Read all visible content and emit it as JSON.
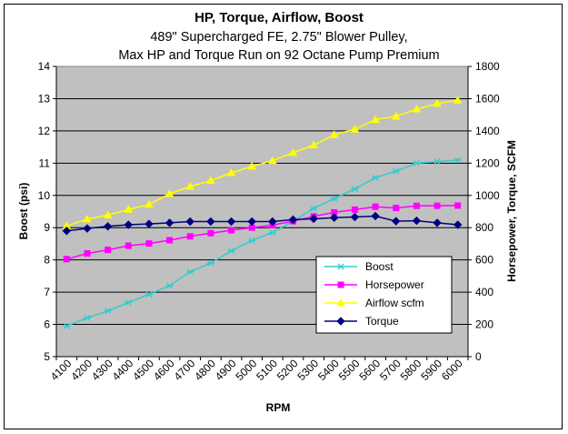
{
  "chart_data": {
    "type": "line",
    "title": "HP, Torque, Airflow, Boost",
    "subtitle_lines": [
      "489\" Supercharged FE, 2.75\" Blower Pulley,",
      "Max HP and Torque Run on 92 Octane Pump Premium"
    ],
    "xlabel": "RPM",
    "ylabel_left": "Boost (psi)",
    "ylabel_right": "Horsepower, Torque, SCFM",
    "x": [
      4100,
      4200,
      4300,
      4400,
      4500,
      4600,
      4700,
      4800,
      4900,
      5000,
      5100,
      5200,
      5300,
      5400,
      5500,
      5600,
      5700,
      5800,
      5900,
      6000
    ],
    "x_tick_labels": [
      "4100",
      "4200",
      "4300",
      "4400",
      "4500",
      "4600",
      "4700",
      "4800",
      "4900",
      "5000",
      "5100",
      "5200",
      "5300",
      "5400",
      "5500",
      "5600",
      "5700",
      "5800",
      "5900",
      "6000"
    ],
    "ylim_left": [
      5,
      14
    ],
    "ylim_right": [
      0,
      1800
    ],
    "left_tick_labels": [
      "5",
      "6",
      "7",
      "8",
      "9",
      "10",
      "11",
      "12",
      "13",
      "14"
    ],
    "right_tick_labels": [
      "0",
      "200",
      "400",
      "600",
      "800",
      "1000",
      "1200",
      "1400",
      "1600",
      "1800"
    ],
    "grid": true,
    "legend_position": "bottom-right inside plot",
    "series": [
      {
        "name": "Boost",
        "axis": "left",
        "color": "#33CCCC",
        "marker": "star",
        "values": [
          5.95,
          6.2,
          6.42,
          6.68,
          6.93,
          7.2,
          7.63,
          7.9,
          8.28,
          8.6,
          8.85,
          9.2,
          9.6,
          9.9,
          10.2,
          10.55,
          10.75,
          11.0,
          11.05,
          11.1
        ]
      },
      {
        "name": "Horsepower",
        "axis": "right",
        "color": "#FF00FF",
        "marker": "square",
        "values": [
          605,
          640,
          662,
          688,
          702,
          722,
          746,
          766,
          784,
          800,
          816,
          840,
          870,
          895,
          912,
          930,
          922,
          935,
          936,
          937
        ]
      },
      {
        "name": "Airflow scfm",
        "axis": "right",
        "color": "#FFFF00",
        "marker": "triangle",
        "values": [
          810,
          853,
          878,
          912,
          944,
          1010,
          1055,
          1092,
          1140,
          1180,
          1215,
          1265,
          1312,
          1376,
          1410,
          1470,
          1490,
          1535,
          1570,
          1590
        ]
      },
      {
        "name": "Torque",
        "axis": "right",
        "color": "#000080",
        "marker": "diamond",
        "values": [
          780,
          795,
          808,
          818,
          823,
          830,
          838,
          838,
          838,
          838,
          838,
          850,
          855,
          862,
          866,
          872,
          840,
          843,
          830,
          818
        ]
      }
    ]
  }
}
